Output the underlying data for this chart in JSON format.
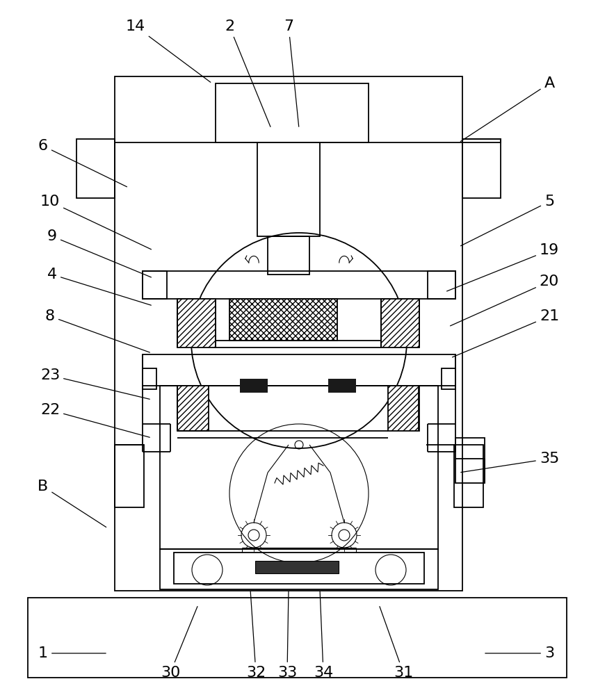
{
  "bg_color": "#ffffff",
  "lc": "#000000",
  "lw": 1.3,
  "tlw": 0.8,
  "fs": 16,
  "labels_data": [
    [
      "14",
      195,
      38,
      305,
      120
    ],
    [
      "2",
      330,
      38,
      390,
      185
    ],
    [
      "7",
      415,
      38,
      430,
      185
    ],
    [
      "A",
      790,
      120,
      660,
      205
    ],
    [
      "6",
      62,
      210,
      185,
      270
    ],
    [
      "10",
      72,
      290,
      220,
      360
    ],
    [
      "9",
      75,
      340,
      220,
      400
    ],
    [
      "4",
      75,
      395,
      220,
      440
    ],
    [
      "5",
      790,
      290,
      660,
      355
    ],
    [
      "19",
      790,
      360,
      640,
      420
    ],
    [
      "20",
      790,
      405,
      645,
      470
    ],
    [
      "21",
      790,
      455,
      648,
      515
    ],
    [
      "8",
      72,
      455,
      218,
      508
    ],
    [
      "23",
      72,
      540,
      218,
      575
    ],
    [
      "22",
      72,
      590,
      218,
      630
    ],
    [
      "35",
      790,
      660,
      660,
      680
    ],
    [
      "B",
      62,
      700,
      155,
      760
    ],
    [
      "1",
      62,
      940,
      155,
      940
    ],
    [
      "30",
      245,
      968,
      285,
      870
    ],
    [
      "32",
      368,
      968,
      360,
      848
    ],
    [
      "33",
      413,
      968,
      415,
      848
    ],
    [
      "34",
      465,
      968,
      460,
      848
    ],
    [
      "31",
      580,
      968,
      545,
      870
    ],
    [
      "3",
      790,
      940,
      695,
      940
    ]
  ]
}
